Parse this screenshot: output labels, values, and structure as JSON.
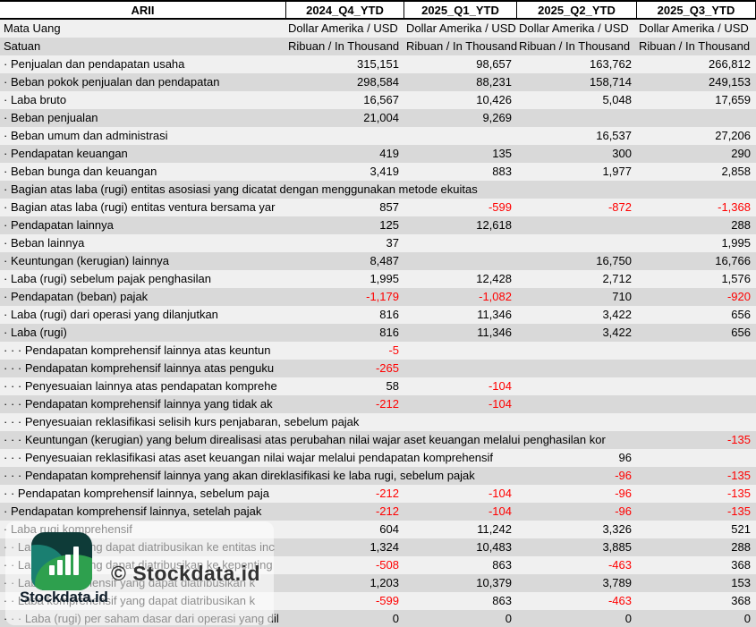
{
  "table": {
    "corner_label": "ARII",
    "columns": [
      "2024_Q4_YTD",
      "2025_Q1_YTD",
      "2025_Q2_YTD",
      "2025_Q3_YTD"
    ],
    "rows": [
      {
        "label": "Mata Uang",
        "align": "left",
        "values": [
          "Dollar Amerika / USD",
          "Dollar Amerika / USD",
          "Dollar Amerika / USD",
          "Dollar Amerika / USD"
        ]
      },
      {
        "label": "Satuan",
        "align": "left",
        "values": [
          "Ribuan / In Thousand",
          "Ribuan / In Thousand",
          "Ribuan / In Thousand",
          "Ribuan / In Thousand"
        ]
      },
      {
        "label": "· Penjualan dan pendapatan usaha",
        "values": [
          "315,151",
          "98,657",
          "163,762",
          "266,812"
        ]
      },
      {
        "label": "· Beban pokok penjualan dan pendapatan",
        "values": [
          "298,584",
          "88,231",
          "158,714",
          "249,153"
        ]
      },
      {
        "label": "· Laba bruto",
        "values": [
          "16,567",
          "10,426",
          "5,048",
          "17,659"
        ]
      },
      {
        "label": "· Beban penjualan",
        "values": [
          "21,004",
          "9,269",
          "",
          ""
        ]
      },
      {
        "label": "· Beban umum dan administrasi",
        "values": [
          "",
          "",
          "16,537",
          "27,206"
        ]
      },
      {
        "label": "· Pendapatan keuangan",
        "values": [
          "419",
          "135",
          "300",
          "290"
        ]
      },
      {
        "label": "· Beban bunga dan keuangan",
        "values": [
          "3,419",
          "883",
          "1,977",
          "2,858"
        ]
      },
      {
        "label": "· Bagian atas laba (rugi) entitas asosiasi yang dicatat dengan menggunakan metode ekuitas",
        "spill": 720,
        "values": [
          "",
          "",
          "",
          ""
        ]
      },
      {
        "label": "· Bagian atas laba (rugi) entitas ventura bersama yar",
        "values": [
          "857",
          "-599",
          "-872",
          "-1,368"
        ]
      },
      {
        "label": "· Pendapatan lainnya",
        "values": [
          "125",
          "12,618",
          "",
          "288"
        ]
      },
      {
        "label": "· Beban lainnya",
        "values": [
          "37",
          "",
          "",
          "1,995"
        ]
      },
      {
        "label": "· Keuntungan (kerugian) lainnya",
        "values": [
          "8,487",
          "",
          "16,750",
          "16,766"
        ]
      },
      {
        "label": "· Laba (rugi) sebelum pajak penghasilan",
        "values": [
          "1,995",
          "12,428",
          "2,712",
          "1,576"
        ]
      },
      {
        "label": "· Pendapatan (beban) pajak",
        "values": [
          "-1,179",
          "-1,082",
          "710",
          "-920"
        ]
      },
      {
        "label": "· Laba (rugi) dari operasi yang dilanjutkan",
        "values": [
          "816",
          "11,346",
          "3,422",
          "656"
        ]
      },
      {
        "label": "· Laba (rugi)",
        "values": [
          "816",
          "11,346",
          "3,422",
          "656"
        ]
      },
      {
        "label": "· · · Pendapatan komprehensif lainnya atas keuntun",
        "values": [
          "-5",
          "",
          "",
          ""
        ]
      },
      {
        "label": "· · · Pendapatan komprehensif lainnya atas penguku",
        "values": [
          "-265",
          "",
          "",
          ""
        ]
      },
      {
        "label": "· · · Penyesuaian lainnya atas pendapatan komprehe",
        "values": [
          "58",
          "-104",
          "",
          ""
        ]
      },
      {
        "label": "· · · Pendapatan komprehensif lainnya yang tidak ak",
        "values": [
          "-212",
          "-104",
          "",
          ""
        ]
      },
      {
        "label": "· · · Penyesuaian reklasifikasi selisih kurs penjabaran, sebelum pajak",
        "spill": 560,
        "values": [
          "",
          "",
          "",
          ""
        ]
      },
      {
        "label": "· · · Keuntungan (kerugian) yang belum direalisasi atas perubahan nilai wajar aset keuangan melalui penghasilan kor",
        "spill": 710,
        "values": [
          "",
          "",
          "",
          "-135"
        ]
      },
      {
        "label": "· · · Penyesuaian reklasifikasi atas aset keuangan nilai wajar melalui pendapatan komprehensif",
        "spill": 650,
        "values": [
          "",
          "",
          "96",
          ""
        ]
      },
      {
        "label": "· · · Pendapatan komprehensif lainnya yang akan direklasifikasi ke laba rugi, sebelum pajak",
        "spill": 578,
        "values": [
          "",
          "",
          "-96",
          "-135"
        ]
      },
      {
        "label": "· · Pendapatan komprehensif lainnya, sebelum paja",
        "values": [
          "-212",
          "-104",
          "-96",
          "-135"
        ]
      },
      {
        "label": "· Pendapatan komprehensif lainnya, setelah pajak",
        "values": [
          "-212",
          "-104",
          "-96",
          "-135"
        ]
      },
      {
        "label": "· Laba rugi komprehensif",
        "values": [
          "604",
          "11,242",
          "3,326",
          "521"
        ]
      },
      {
        "label": "· · Laba (rugi) yang dapat diatribusikan ke entitas inc",
        "values": [
          "1,324",
          "10,483",
          "3,885",
          "288"
        ]
      },
      {
        "label": "· · Laba (rugi) yang dapat diatribusikan ke kepenting",
        "values": [
          "-508",
          "863",
          "-463",
          "368"
        ]
      },
      {
        "label": "· · Laba komprehensif yang dapat diatribusikan k",
        "values": [
          "1,203",
          "10,379",
          "3,789",
          "153"
        ]
      },
      {
        "label": "· · Laba komprehensif yang dapat diatribusikan k",
        "values": [
          "-599",
          "863",
          "-463",
          "368"
        ]
      },
      {
        "label": "· · · Laba (rugi) per saham dasar dari operasi yang dil",
        "values": [
          "0",
          "0",
          "0",
          "0"
        ]
      }
    ]
  },
  "watermark": {
    "copyright": "© Stockdata.id",
    "brand": "Stockdata.id"
  },
  "colors": {
    "stripe_light": "#f0f0f0",
    "stripe_dark": "#d9d9d9",
    "negative": "#ff0000",
    "logo_dark_teal": "#0e3b38",
    "logo_teal": "#1a7f71",
    "logo_green": "#2ea04e"
  }
}
